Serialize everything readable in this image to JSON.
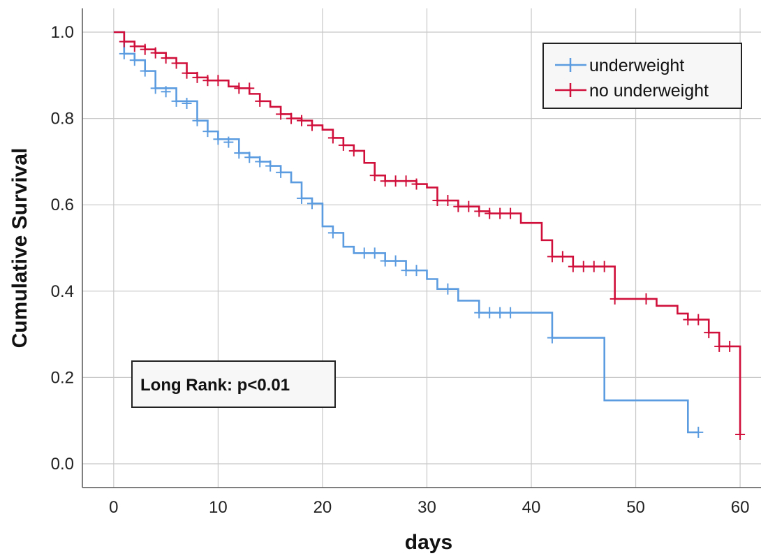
{
  "chart_data": {
    "type": "line",
    "subtype": "kaplan-meier step plot",
    "xlabel": "days",
    "ylabel": "Cumulative Survival",
    "xlim": [
      -3,
      62
    ],
    "ylim": [
      -0.055,
      1.055
    ],
    "x_ticks": [
      0,
      10,
      20,
      30,
      40,
      50,
      60
    ],
    "y_ticks": [
      0.0,
      0.2,
      0.4,
      0.6,
      0.8,
      1.0
    ],
    "x_tick_labels": [
      "0",
      "10",
      "20",
      "30",
      "40",
      "50",
      "60"
    ],
    "y_tick_labels": [
      "0.0",
      "0.2",
      "0.4",
      "0.6",
      "0.8",
      "1.0"
    ],
    "grid": true,
    "legend_position": "top-right",
    "annotation": "Long Rank: p<0.01",
    "series": [
      {
        "name": "underweight",
        "color": "#5B9BE0",
        "steps": [
          [
            0,
            1.0
          ],
          [
            1,
            0.95
          ],
          [
            2,
            0.935
          ],
          [
            3,
            0.91
          ],
          [
            4,
            0.87
          ],
          [
            6,
            0.84
          ],
          [
            8,
            0.795
          ],
          [
            9,
            0.77
          ],
          [
            10,
            0.752
          ],
          [
            12,
            0.72
          ],
          [
            13,
            0.71
          ],
          [
            14,
            0.7
          ],
          [
            15,
            0.69
          ],
          [
            16,
            0.675
          ],
          [
            17,
            0.652
          ],
          [
            18,
            0.615
          ],
          [
            19,
            0.603
          ],
          [
            20,
            0.55
          ],
          [
            21,
            0.535
          ],
          [
            22,
            0.503
          ],
          [
            23,
            0.488
          ],
          [
            26,
            0.47
          ],
          [
            28,
            0.448
          ],
          [
            30,
            0.428
          ],
          [
            31,
            0.405
          ],
          [
            33,
            0.378
          ],
          [
            35,
            0.35
          ],
          [
            42,
            0.292
          ],
          [
            47,
            0.147
          ],
          [
            55,
            0.073
          ],
          [
            56,
            0.073
          ]
        ],
        "censored": [
          [
            1,
            0.95
          ],
          [
            2,
            0.935
          ],
          [
            3,
            0.91
          ],
          [
            4,
            0.87
          ],
          [
            5,
            0.862
          ],
          [
            6,
            0.84
          ],
          [
            7,
            0.835
          ],
          [
            8,
            0.795
          ],
          [
            9,
            0.77
          ],
          [
            10,
            0.752
          ],
          [
            11,
            0.745
          ],
          [
            12,
            0.72
          ],
          [
            13,
            0.71
          ],
          [
            14,
            0.7
          ],
          [
            15,
            0.69
          ],
          [
            16,
            0.675
          ],
          [
            18,
            0.615
          ],
          [
            19,
            0.603
          ],
          [
            21,
            0.535
          ],
          [
            24,
            0.488
          ],
          [
            25,
            0.488
          ],
          [
            26,
            0.47
          ],
          [
            27,
            0.47
          ],
          [
            28,
            0.448
          ],
          [
            29,
            0.448
          ],
          [
            32,
            0.405
          ],
          [
            35,
            0.35
          ],
          [
            36,
            0.35
          ],
          [
            37,
            0.35
          ],
          [
            38,
            0.35
          ],
          [
            42,
            0.292
          ],
          [
            56,
            0.073
          ]
        ]
      },
      {
        "name": "no underweight",
        "color": "#D0103A",
        "steps": [
          [
            0,
            1.0
          ],
          [
            1,
            0.978
          ],
          [
            2,
            0.967
          ],
          [
            3,
            0.96
          ],
          [
            4,
            0.952
          ],
          [
            5,
            0.94
          ],
          [
            6,
            0.928
          ],
          [
            7,
            0.905
          ],
          [
            8,
            0.895
          ],
          [
            9,
            0.888
          ],
          [
            11,
            0.874
          ],
          [
            12,
            0.87
          ],
          [
            13,
            0.857
          ],
          [
            14,
            0.84
          ],
          [
            15,
            0.827
          ],
          [
            16,
            0.81
          ],
          [
            17,
            0.8
          ],
          [
            18,
            0.795
          ],
          [
            19,
            0.784
          ],
          [
            20,
            0.774
          ],
          [
            21,
            0.755
          ],
          [
            22,
            0.738
          ],
          [
            23,
            0.725
          ],
          [
            24,
            0.697
          ],
          [
            25,
            0.668
          ],
          [
            26,
            0.655
          ],
          [
            29,
            0.648
          ],
          [
            30,
            0.64
          ],
          [
            31,
            0.61
          ],
          [
            33,
            0.596
          ],
          [
            35,
            0.585
          ],
          [
            36,
            0.58
          ],
          [
            39,
            0.558
          ],
          [
            41,
            0.518
          ],
          [
            42,
            0.48
          ],
          [
            44,
            0.457
          ],
          [
            48,
            0.382
          ],
          [
            52,
            0.366
          ],
          [
            54,
            0.348
          ],
          [
            55,
            0.334
          ],
          [
            57,
            0.304
          ],
          [
            58,
            0.272
          ],
          [
            60,
            0.068
          ]
        ],
        "censored": [
          [
            1,
            0.978
          ],
          [
            2,
            0.967
          ],
          [
            3,
            0.96
          ],
          [
            4,
            0.952
          ],
          [
            5,
            0.94
          ],
          [
            6,
            0.928
          ],
          [
            7,
            0.905
          ],
          [
            8,
            0.895
          ],
          [
            9,
            0.888
          ],
          [
            10,
            0.888
          ],
          [
            12,
            0.87
          ],
          [
            13,
            0.87
          ],
          [
            14,
            0.84
          ],
          [
            16,
            0.81
          ],
          [
            17,
            0.8
          ],
          [
            18,
            0.795
          ],
          [
            19,
            0.784
          ],
          [
            21,
            0.755
          ],
          [
            22,
            0.738
          ],
          [
            23,
            0.725
          ],
          [
            25,
            0.668
          ],
          [
            26,
            0.655
          ],
          [
            27,
            0.655
          ],
          [
            28,
            0.655
          ],
          [
            29,
            0.648
          ],
          [
            31,
            0.61
          ],
          [
            32,
            0.61
          ],
          [
            33,
            0.596
          ],
          [
            34,
            0.596
          ],
          [
            35,
            0.585
          ],
          [
            36,
            0.58
          ],
          [
            37,
            0.58
          ],
          [
            38,
            0.58
          ],
          [
            42,
            0.48
          ],
          [
            43,
            0.48
          ],
          [
            44,
            0.457
          ],
          [
            45,
            0.457
          ],
          [
            46,
            0.457
          ],
          [
            47,
            0.457
          ],
          [
            48,
            0.382
          ],
          [
            51,
            0.382
          ],
          [
            55,
            0.334
          ],
          [
            56,
            0.334
          ],
          [
            57,
            0.304
          ],
          [
            58,
            0.272
          ],
          [
            59,
            0.272
          ],
          [
            60,
            0.068
          ]
        ]
      }
    ]
  }
}
